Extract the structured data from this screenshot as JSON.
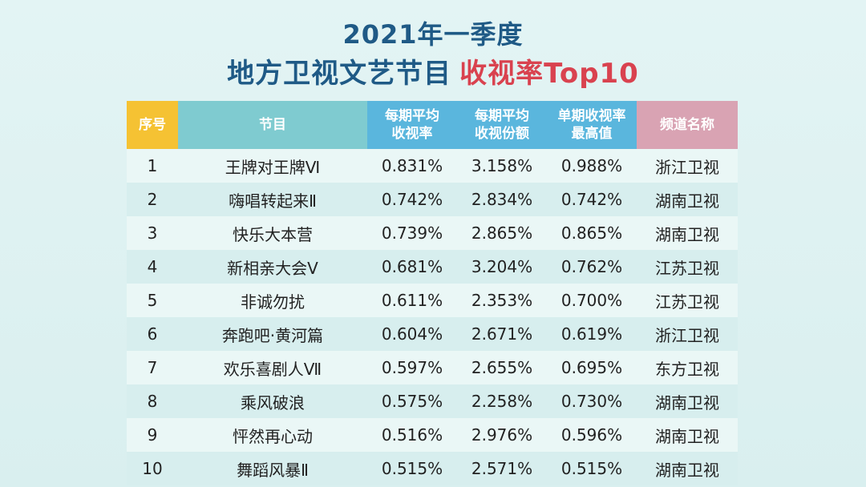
{
  "title": {
    "line1": "2021年一季度",
    "line2_main": "地方卫视文艺节目",
    "line2_accent": "收视率Top10"
  },
  "colors": {
    "title": "#1f5a86",
    "accent": "#d9424f",
    "header_no": "#f5c233",
    "header_program": "#7fcbd0",
    "header_metric": "#5ab6dd",
    "header_channel": "#d9a3b3"
  },
  "table": {
    "headers": {
      "no": "序号",
      "program": "节目",
      "avg_rating_1": "每期平均",
      "avg_rating_2": "收视率",
      "avg_share_1": "每期平均",
      "avg_share_2": "收视份额",
      "max_rating_1": "单期收视率",
      "max_rating_2": "最高值",
      "channel": "频道名称"
    },
    "rows": [
      {
        "no": "1",
        "program": "王牌对王牌Ⅵ",
        "avg_rating": "0.831%",
        "avg_share": "3.158%",
        "max_rating": "0.988%",
        "channel": "浙江卫视"
      },
      {
        "no": "2",
        "program": "嗨唱转起来Ⅱ",
        "avg_rating": "0.742%",
        "avg_share": "2.834%",
        "max_rating": "0.742%",
        "channel": "湖南卫视"
      },
      {
        "no": "3",
        "program": "快乐大本营",
        "avg_rating": "0.739%",
        "avg_share": "2.865%",
        "max_rating": "0.865%",
        "channel": "湖南卫视"
      },
      {
        "no": "4",
        "program": "新相亲大会Ⅴ",
        "avg_rating": "0.681%",
        "avg_share": "3.204%",
        "max_rating": "0.762%",
        "channel": "江苏卫视"
      },
      {
        "no": "5",
        "program": "非诚勿扰",
        "avg_rating": "0.611%",
        "avg_share": "2.353%",
        "max_rating": "0.700%",
        "channel": "江苏卫视"
      },
      {
        "no": "6",
        "program": "奔跑吧·黄河篇",
        "avg_rating": "0.604%",
        "avg_share": "2.671%",
        "max_rating": "0.619%",
        "channel": "浙江卫视"
      },
      {
        "no": "7",
        "program": "欢乐喜剧人Ⅶ",
        "avg_rating": "0.597%",
        "avg_share": "2.655%",
        "max_rating": "0.695%",
        "channel": "东方卫视"
      },
      {
        "no": "8",
        "program": "乘风破浪",
        "avg_rating": "0.575%",
        "avg_share": "2.258%",
        "max_rating": "0.730%",
        "channel": "湖南卫视"
      },
      {
        "no": "9",
        "program": "怦然再心动",
        "avg_rating": "0.516%",
        "avg_share": "2.976%",
        "max_rating": "0.596%",
        "channel": "湖南卫视"
      },
      {
        "no": "10",
        "program": "舞蹈风暴Ⅱ",
        "avg_rating": "0.515%",
        "avg_share": "2.571%",
        "max_rating": "0.515%",
        "channel": "湖南卫视"
      }
    ]
  }
}
